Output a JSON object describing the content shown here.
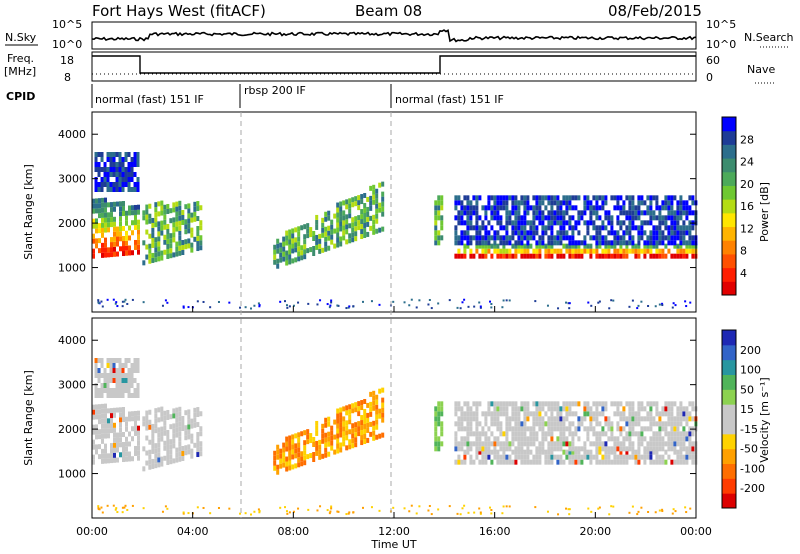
{
  "header": {
    "station": "Fort Hays West (fitACF)",
    "beam": "Beam 08",
    "date": "08/Feb/2015"
  },
  "panels": {
    "nsky": {
      "label": "N.Sky",
      "left_ticks": [
        "10^5",
        "10^0"
      ],
      "right_label": "N.Search",
      "right_ticks": [
        "10^5",
        "10^0"
      ]
    },
    "freq": {
      "label_top": "Freq.",
      "label_unit": "[MHz]",
      "left_ticks": [
        "18",
        "8"
      ],
      "right_label": "Nave",
      "right_ticks": [
        "60",
        "0"
      ]
    },
    "cpid": {
      "label": "CPID",
      "segments": [
        "normal (fast) 151 IF",
        "rbsp 200 IF",
        "normal (fast) 151 IF"
      ]
    }
  },
  "chart_data": [
    {
      "type": "heatmap",
      "name": "power",
      "ylabel": "Slant Range [km]",
      "yticks": [
        "4000",
        "3000",
        "2000",
        "1000"
      ],
      "ylim": [
        0,
        4500
      ],
      "xlim": [
        "00:00",
        "24:00"
      ],
      "colorbar": {
        "label": "Power [dB]",
        "ticks": [
          "28",
          "24",
          "20",
          "16",
          "12",
          "8",
          "4"
        ],
        "colors": [
          "#0000ff",
          "#1e3c96",
          "#2c6e8c",
          "#3c8c6e",
          "#4caa5a",
          "#6ec832",
          "#b4dc14",
          "#ffe600",
          "#ffb400",
          "#ff8200",
          "#ff5000",
          "#ff1e00",
          "#e10000"
        ]
      }
    },
    {
      "type": "heatmap",
      "name": "velocity",
      "ylabel": "Slant Range [km]",
      "yticks": [
        "4000",
        "3000",
        "2000",
        "1000"
      ],
      "ylim": [
        0,
        4500
      ],
      "xlim": [
        "00:00",
        "24:00"
      ],
      "colorbar": {
        "label": "Velocity [m s⁻¹]",
        "ticks": [
          "200",
          "100",
          "50",
          "15",
          "-15",
          "-50",
          "-100",
          "-200"
        ],
        "colors": [
          "#1e28b4",
          "#3264c8",
          "#2896a0",
          "#50b45a",
          "#8cd250",
          "#c8c8c8",
          "#c8c8c8",
          "#ffd200",
          "#ffa000",
          "#ff6e00",
          "#ff3c00",
          "#dc0000"
        ]
      }
    }
  ],
  "xaxis": {
    "ticks": [
      "00:00",
      "04:00",
      "08:00",
      "12:00",
      "16:00",
      "20:00",
      "00:00"
    ],
    "label": "Time UT"
  }
}
